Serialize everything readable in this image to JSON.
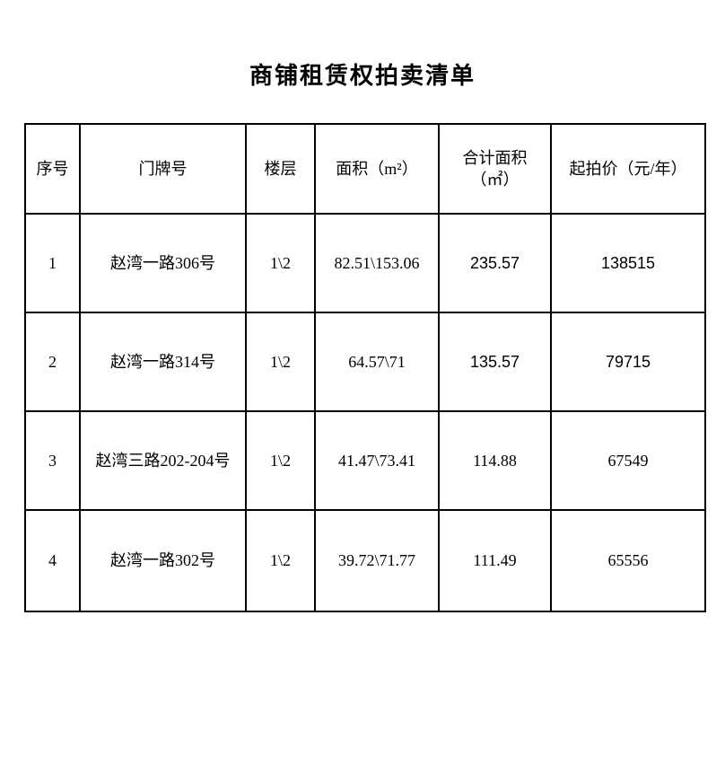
{
  "title": "商铺租赁权拍卖清单",
  "table": {
    "headers": {
      "no": "序号",
      "address": "门牌号",
      "floor": "楼层",
      "area": "面积（m²）",
      "total_area": "合计面积\n（㎡）",
      "price": "起拍价（元/年）"
    },
    "rows": [
      {
        "no": "1",
        "address": "赵湾一路306号",
        "floor": "1\\2",
        "area": "82.51\\153.06",
        "total_area": "235.57",
        "price": "138515"
      },
      {
        "no": "2",
        "address": "赵湾一路314号",
        "floor": "1\\2",
        "area": "64.57\\71",
        "total_area": "135.57",
        "price": "79715"
      },
      {
        "no": "3",
        "address": "赵湾三路202-204号",
        "floor": "1\\2",
        "area": "41.47\\73.41",
        "total_area": "114.88",
        "price": "67549"
      },
      {
        "no": "4",
        "address": "赵湾一路302号",
        "floor": "1\\2",
        "area": "39.72\\71.77",
        "total_area": "111.49",
        "price": "65556"
      }
    ]
  }
}
